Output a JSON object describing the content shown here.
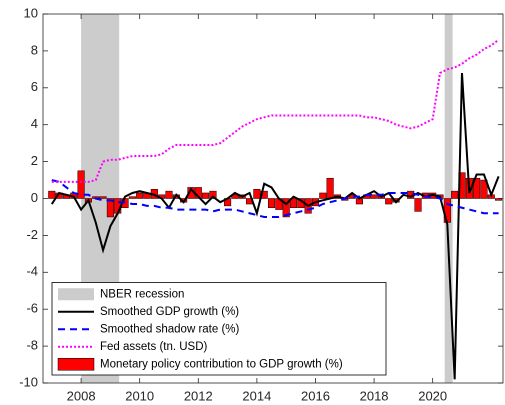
{
  "chart_data": {
    "type": "line",
    "x": [
      2007.0,
      2007.25,
      2007.5,
      2007.75,
      2008.0,
      2008.25,
      2008.5,
      2008.75,
      2009.0,
      2009.25,
      2009.5,
      2009.75,
      2010.0,
      2010.25,
      2010.5,
      2010.75,
      2011.0,
      2011.25,
      2011.5,
      2011.75,
      2012.0,
      2012.25,
      2012.5,
      2012.75,
      2013.0,
      2013.25,
      2013.5,
      2013.75,
      2014.0,
      2014.25,
      2014.5,
      2014.75,
      2015.0,
      2015.25,
      2015.5,
      2015.75,
      2016.0,
      2016.25,
      2016.5,
      2016.75,
      2017.0,
      2017.25,
      2017.5,
      2017.75,
      2018.0,
      2018.25,
      2018.5,
      2018.75,
      2019.0,
      2019.25,
      2019.5,
      2019.75,
      2020.0,
      2020.25,
      2020.5,
      2020.75,
      2021.0,
      2021.25,
      2021.5,
      2021.75,
      2022.0,
      2022.25
    ],
    "series": [
      {
        "name": "NBER recession",
        "kind": "span",
        "color": "#cccccc",
        "spans": [
          [
            2008.0,
            2009.3
          ],
          [
            2020.41,
            2020.68
          ]
        ]
      },
      {
        "name": "Smoothed GDP growth (%)",
        "kind": "line",
        "color": "#000000",
        "style": "solid",
        "values": [
          -0.3,
          0.3,
          0.2,
          0.1,
          -0.6,
          -0.1,
          -1.3,
          -2.8,
          -1.5,
          -0.8,
          0.1,
          0.3,
          0.4,
          0.3,
          0.2,
          0.0,
          -0.5,
          0.2,
          -0.2,
          0.5,
          0.1,
          -0.3,
          0.1,
          -0.2,
          0.0,
          0.3,
          0.1,
          0.3,
          -0.8,
          0.8,
          0.6,
          0.0,
          -0.3,
          0.1,
          -0.1,
          -0.4,
          -0.2,
          -0.1,
          0.0,
          0.1,
          0.0,
          0.3,
          0.0,
          0.2,
          0.4,
          0.1,
          0.3,
          -0.2,
          0.2,
          0.1,
          0.3,
          0.1,
          0.2,
          0.1,
          -1.4,
          -9.8,
          6.8,
          0.3,
          1.3,
          1.3,
          0.2,
          1.2
        ]
      },
      {
        "name": "Smoothed shadow rate (%)",
        "kind": "line",
        "color": "#0000ff",
        "style": "dashed",
        "values": [
          1.0,
          0.9,
          0.6,
          0.3,
          0.2,
          0.2,
          0.0,
          -0.1,
          -0.1,
          -0.2,
          -0.2,
          -0.3,
          -0.3,
          -0.4,
          -0.4,
          -0.5,
          -0.5,
          -0.6,
          -0.6,
          -0.6,
          -0.6,
          -0.6,
          -0.7,
          -0.6,
          -0.6,
          -0.6,
          -0.7,
          -0.8,
          -0.9,
          -1.0,
          -1.0,
          -1.0,
          -0.9,
          -0.8,
          -0.7,
          -0.6,
          -0.5,
          -0.3,
          -0.2,
          -0.1,
          0.0,
          0.1,
          0.1,
          0.2,
          0.2,
          0.2,
          0.3,
          0.3,
          0.3,
          0.3,
          0.2,
          0.1,
          0.1,
          0.0,
          -0.3,
          -0.4,
          -0.5,
          -0.6,
          -0.7,
          -0.8,
          -0.8,
          -0.8
        ]
      },
      {
        "name": "Fed assets (tn. USD)",
        "kind": "line",
        "color": "#ff00ff",
        "style": "dotted",
        "values": [
          0.9,
          0.9,
          0.9,
          0.9,
          0.9,
          0.9,
          1.0,
          2.0,
          2.1,
          2.1,
          2.2,
          2.3,
          2.3,
          2.3,
          2.3,
          2.4,
          2.7,
          2.9,
          2.9,
          2.9,
          2.9,
          2.9,
          2.9,
          3.0,
          3.3,
          3.6,
          3.9,
          4.1,
          4.3,
          4.4,
          4.5,
          4.5,
          4.5,
          4.5,
          4.5,
          4.5,
          4.5,
          4.5,
          4.5,
          4.5,
          4.5,
          4.5,
          4.5,
          4.4,
          4.4,
          4.3,
          4.2,
          4.0,
          3.9,
          3.8,
          3.9,
          4.1,
          4.3,
          6.8,
          7.0,
          7.1,
          7.3,
          7.6,
          7.8,
          8.1,
          8.3,
          8.6
        ]
      },
      {
        "name": "Monetary policy contribution to GDP growth (%)",
        "kind": "bar",
        "color": "#ff0000",
        "values": [
          0.4,
          0.3,
          0.2,
          0.3,
          1.5,
          -0.2,
          0.1,
          0.1,
          -1.0,
          -0.8,
          -0.5,
          0.1,
          0.3,
          0.3,
          0.5,
          0.2,
          0.4,
          0.2,
          -0.2,
          0.6,
          0.6,
          0.3,
          0.4,
          0.0,
          -0.4,
          0.2,
          0.2,
          -0.3,
          0.5,
          0.4,
          -0.5,
          -0.6,
          -1.0,
          -0.5,
          -0.5,
          -0.8,
          -0.4,
          0.3,
          1.1,
          0.2,
          -0.1,
          0.2,
          -0.3,
          0.2,
          0.2,
          0.2,
          -0.3,
          -0.2,
          0.0,
          0.4,
          -0.7,
          0.3,
          0.3,
          0.2,
          -1.3,
          0.4,
          1.4,
          1.1,
          1.1,
          1.0,
          0.2,
          -0.1
        ]
      }
    ],
    "xlim": [
      2006.7,
      2022.4
    ],
    "ylim": [
      -10,
      10
    ],
    "xticks": [
      2008,
      2010,
      2012,
      2014,
      2016,
      2018,
      2020
    ],
    "yticks": [
      -10,
      -8,
      -6,
      -4,
      -2,
      0,
      2,
      4,
      6,
      8,
      10
    ],
    "legend": "lower-left"
  }
}
